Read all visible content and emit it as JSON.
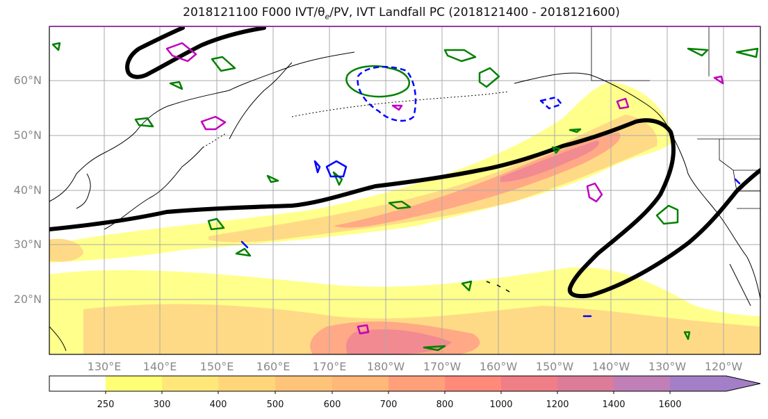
{
  "title": {
    "prefix": "2018121100 F000 IVT/",
    "theta": "θ",
    "theta_sub": "e",
    "suffix": "/PV, IVT Landfall PC (2018121400 - 2018121600)"
  },
  "map": {
    "lat_labels": [
      "60°N",
      "50°N",
      "40°N",
      "30°N",
      "20°N"
    ],
    "lon_labels": [
      "130°E",
      "140°E",
      "150°E",
      "160°E",
      "170°E",
      "180°W",
      "170°W",
      "160°W",
      "150°W",
      "140°W",
      "130°W",
      "120°W"
    ]
  },
  "colorbar": {
    "labels": [
      "250",
      "300",
      "400",
      "500",
      "600",
      "700",
      "800",
      "1000",
      "1200",
      "1400",
      "1600"
    ],
    "colors": [
      "#ffffff",
      "#ffff75",
      "#ffe77a",
      "#ffd77a",
      "#ffc47a",
      "#ffb77a",
      "#ffa07a",
      "#ff8a7a",
      "#f07e86",
      "#dd7b9a",
      "#c07fb6",
      "#a37fc8"
    ]
  },
  "colors": {
    "pc_contour": "#000000",
    "theta_e": "#008000",
    "pv": "#c000c0",
    "negative": "#0000ff",
    "coast": "#000000",
    "grid": "#aaaaaa"
  }
}
